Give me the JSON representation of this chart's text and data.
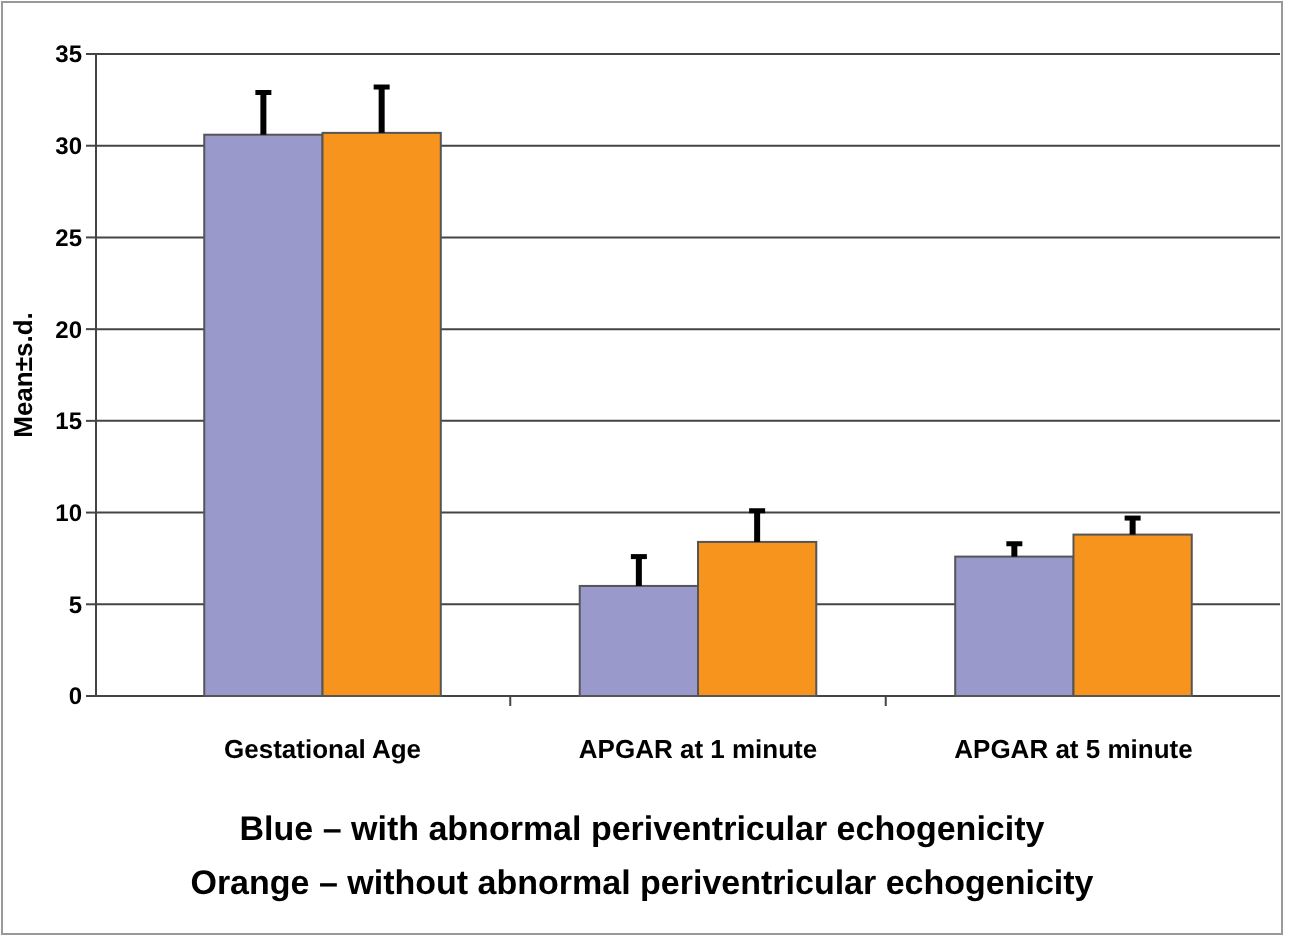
{
  "chart_data": {
    "type": "bar",
    "ylabel": "Mean±s.d.",
    "categories": [
      "Gestational Age",
      "APGAR at 1 minute",
      "APGAR at 5 minute"
    ],
    "series": [
      {
        "color": "#9999cc",
        "values": [
          30.6,
          6.0,
          7.6
        ],
        "errors": [
          2.3,
          1.6,
          0.7
        ]
      },
      {
        "color": "#f7941d",
        "values": [
          30.7,
          8.4,
          8.8
        ],
        "errors": [
          2.5,
          1.7,
          0.9
        ]
      }
    ],
    "ylim": [
      0,
      35
    ],
    "yticks": [
      0,
      5,
      10,
      15,
      20,
      25,
      30,
      35
    ],
    "grid": "y",
    "annotations": [
      "Blue – with abnormal periventricular echogenicity",
      "Orange – without abnormal periventricular echogenicity"
    ]
  }
}
